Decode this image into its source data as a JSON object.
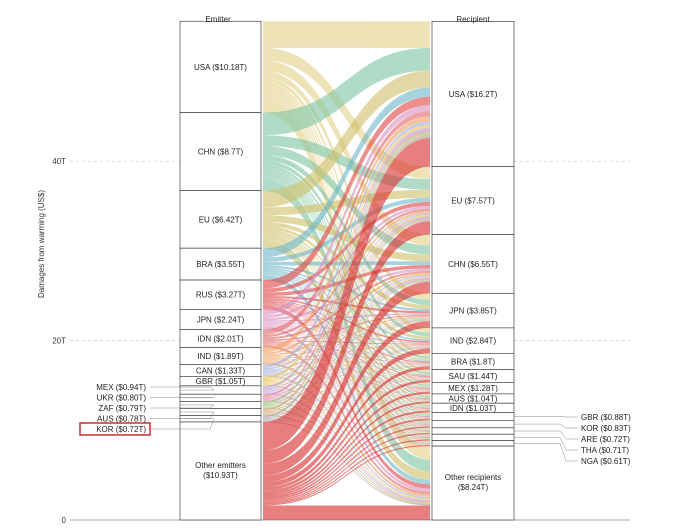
{
  "chart_data": {
    "type": "sankey",
    "ylabel": "Damages from warming (US$)",
    "yticks": [
      {
        "value": 0,
        "label": "0"
      },
      {
        "value": 20,
        "label": "20T"
      },
      {
        "value": 40,
        "label": "40T"
      }
    ],
    "ylim": [
      0,
      56
    ],
    "emitter_header": "Emitter",
    "recipient_header": "Recipient",
    "emitters": [
      {
        "name": "USA",
        "label": "USA ($10.18T)",
        "value": 10.18,
        "color": "#e3d08a"
      },
      {
        "name": "CHN",
        "label": "CHN ($8.7T)",
        "value": 8.7,
        "color": "#7fc6a4"
      },
      {
        "name": "EU",
        "label": "EU ($6.42T)",
        "value": 6.42,
        "color": "#cfc06a"
      },
      {
        "name": "BRA",
        "label": "BRA ($3.55T)",
        "value": 3.55,
        "color": "#6fb8c8"
      },
      {
        "name": "RUS",
        "label": "RUS ($3.27T)",
        "value": 3.27,
        "color": "#e04848"
      },
      {
        "name": "JPN",
        "label": "JPN ($2.24T)",
        "value": 2.24,
        "color": "#d98fc0"
      },
      {
        "name": "IDN",
        "label": "IDN ($2.01T)",
        "value": 2.01,
        "color": "#e06a6a"
      },
      {
        "name": "IND",
        "label": "IND ($1.89T)",
        "value": 1.89,
        "color": "#f0a060"
      },
      {
        "name": "CAN",
        "label": "CAN ($1.33T)",
        "value": 1.33,
        "color": "#9fb0d8"
      },
      {
        "name": "GBR",
        "label": "GBR ($1.05T)",
        "value": 1.05,
        "color": "#e8c050"
      },
      {
        "name": "MEX",
        "label": "MEX ($0.94T)",
        "value": 0.94,
        "color": "#b89ad0"
      },
      {
        "name": "UKR",
        "label": "UKR ($0.80T)",
        "value": 0.8,
        "color": "#e07c9c"
      },
      {
        "name": "ZAF",
        "label": "ZAF ($0.79T)",
        "value": 0.79,
        "color": "#8cc070"
      },
      {
        "name": "AUS",
        "label": "AUS ($0.78T)",
        "value": 0.78,
        "color": "#d0a070"
      },
      {
        "name": "KOR",
        "label": "KOR ($0.72T)",
        "value": 0.72,
        "color": "#a0a0a0"
      },
      {
        "name": "Other",
        "label": "Other emitters ($10.93T)",
        "value": 10.93,
        "color": "#d83030"
      }
    ],
    "highlighted_emitter": "KOR",
    "recipients": [
      {
        "name": "USA",
        "label": "USA ($16.2T)",
        "value": 16.2
      },
      {
        "name": "EU",
        "label": "EU ($7.57T)",
        "value": 7.57
      },
      {
        "name": "CHN",
        "label": "CHN ($6.55T)",
        "value": 6.55
      },
      {
        "name": "JPN",
        "label": "JPN ($3.85T)",
        "value": 3.85
      },
      {
        "name": "IND",
        "label": "IND ($2.84T)",
        "value": 2.84
      },
      {
        "name": "BRA",
        "label": "BRA ($1.8T)",
        "value": 1.8
      },
      {
        "name": "SAU",
        "label": "SAU ($1.44T)",
        "value": 1.44
      },
      {
        "name": "MEX",
        "label": "MEX ($1.28T)",
        "value": 1.28
      },
      {
        "name": "AUS",
        "label": "AUS ($1.04T)",
        "value": 1.04
      },
      {
        "name": "IDN",
        "label": "IDN ($1.03T)",
        "value": 1.03
      },
      {
        "name": "GBR",
        "label": "GBR ($0.88T)",
        "value": 0.88
      },
      {
        "name": "KOR",
        "label": "KOR ($0.83T)",
        "value": 0.83
      },
      {
        "name": "ARE",
        "label": "ARE ($0.72T)",
        "value": 0.72
      },
      {
        "name": "THA",
        "label": "THA ($0.71T)",
        "value": 0.71
      },
      {
        "name": "NGA",
        "label": "NGA ($0.61T)",
        "value": 0.61
      },
      {
        "name": "Other",
        "label": "Other recipients ($8.24T)",
        "value": 8.24
      }
    ],
    "label_threshold": 1.0
  }
}
